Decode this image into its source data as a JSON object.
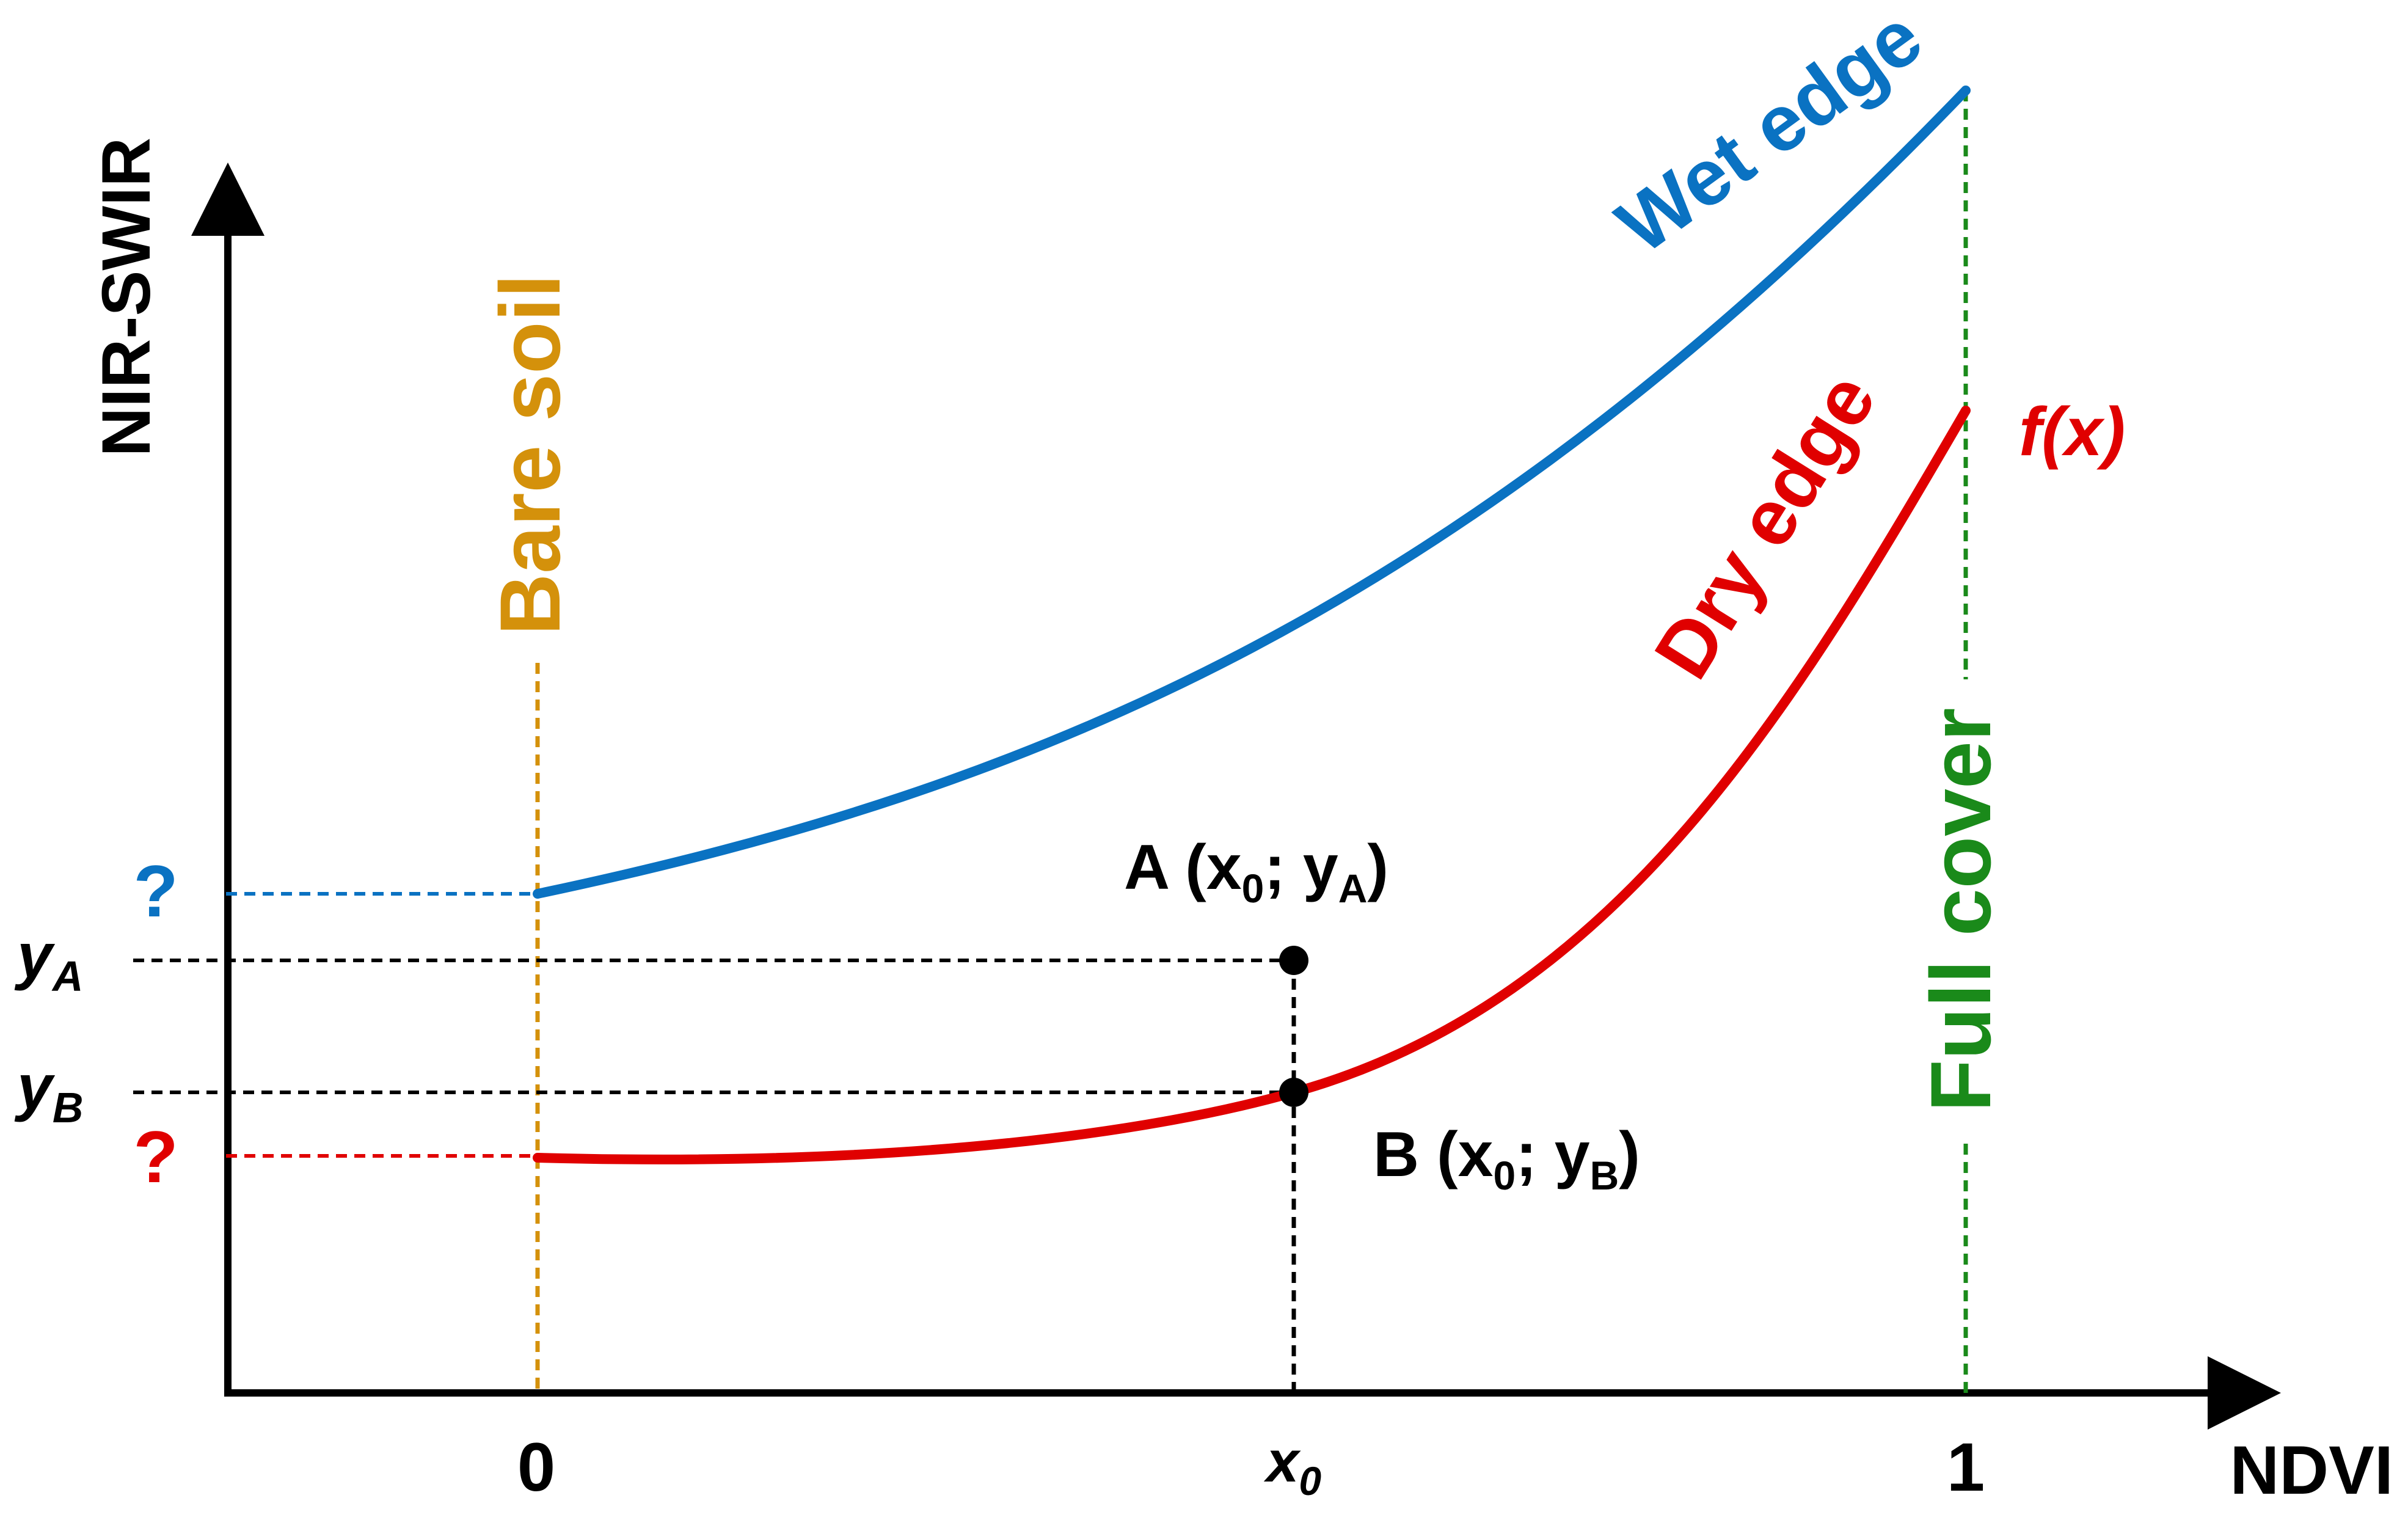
{
  "axes": {
    "x_label": "NDVI",
    "y_label": "NIR-SWIR",
    "x_ticks": [
      "0",
      "x0",
      "1"
    ]
  },
  "lines": {
    "bare_soil": "Bare soil",
    "full_cover": "Full cover"
  },
  "curves": {
    "wet_edge": "Wet edge",
    "dry_edge": "Dry edge",
    "function": "f(x)"
  },
  "points": {
    "A": "A (x0; yA)",
    "B": "B (x0; yB)"
  },
  "y_markers": {
    "wet_intercept": "?",
    "dry_intercept": "?",
    "yA": "yA",
    "yB": "yB"
  },
  "colors": {
    "wet": "#0a72c2",
    "dry": "#e00000",
    "bare_soil": "#d4910b",
    "full_cover": "#1a8a1a",
    "black": "#000000"
  }
}
